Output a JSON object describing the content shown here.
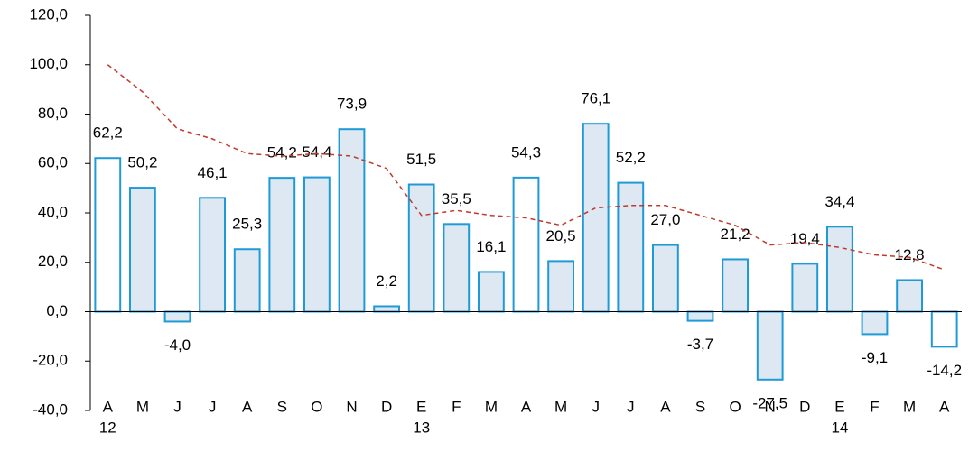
{
  "chart_data": {
    "type": "bar",
    "categories": [
      "A",
      "M",
      "J",
      "J",
      "A",
      "S",
      "O",
      "N",
      "D",
      "E",
      "F",
      "M",
      "A",
      "M",
      "J",
      "J",
      "A",
      "S",
      "O",
      "N",
      "D",
      "E",
      "F",
      "M",
      "A"
    ],
    "year_labels": [
      "12",
      null,
      null,
      null,
      null,
      null,
      null,
      null,
      null,
      "13",
      null,
      null,
      null,
      null,
      null,
      null,
      null,
      null,
      null,
      null,
      null,
      "14",
      null,
      null,
      null
    ],
    "series": [
      {
        "type": "bar",
        "color": "#1e9bd7",
        "fills": [
          "#ffffff",
          "#dde8f3",
          "#dde8f3",
          "#dde8f3",
          "#dde8f3",
          "#dde8f3",
          "#dde8f3",
          "#dde8f3",
          "#dde8f3",
          "#dde8f3",
          "#dde8f3",
          "#dde8f3",
          "#ffffff",
          "#dde8f3",
          "#dde8f3",
          "#dde8f3",
          "#dde8f3",
          "#dde8f3",
          "#dde8f3",
          "#dde8f3",
          "#dde8f3",
          "#dde8f3",
          "#dde8f3",
          "#dde8f3",
          "#ffffff"
        ],
        "values": [
          62.2,
          50.2,
          -4.0,
          46.1,
          25.3,
          54.2,
          54.4,
          73.9,
          2.2,
          51.5,
          35.5,
          16.1,
          54.3,
          20.5,
          76.1,
          52.2,
          27.0,
          -3.7,
          21.2,
          -27.5,
          19.4,
          34.4,
          -9.1,
          12.8,
          -14.2
        ],
        "value_labels": [
          "62,2",
          "50,2",
          "-4,0",
          "46,1",
          "25,3",
          "54,2",
          "54,4",
          "73,9",
          "2,2",
          "51,5",
          "35,5",
          "16,1",
          "54,3",
          "20,5",
          "76,1",
          "52,2",
          "27,0",
          "-3,7",
          "21,2",
          "-27,5",
          "19,4",
          "34,4",
          "-9,1",
          "12,8",
          "-14,2"
        ]
      },
      {
        "type": "line",
        "color": "#c0392b",
        "dashed": true,
        "values": [
          100,
          89,
          74,
          70,
          64,
          63,
          64,
          63,
          58,
          39,
          41,
          39,
          38,
          35,
          42,
          43,
          43,
          39,
          35,
          27,
          28,
          26,
          23,
          22,
          17
        ]
      }
    ],
    "ylim": [
      -40,
      120
    ],
    "yticks": [
      {
        "value": -40,
        "label": "-40,0"
      },
      {
        "value": -20,
        "label": "-20,0"
      },
      {
        "value": 0,
        "label": "0,0"
      },
      {
        "value": 20,
        "label": "20,0"
      },
      {
        "value": 40,
        "label": "40,0"
      },
      {
        "value": 60,
        "label": "60,0"
      },
      {
        "value": 80,
        "label": "80,0"
      },
      {
        "value": 100,
        "label": "100,0"
      },
      {
        "value": 120,
        "label": "120,0"
      }
    ]
  }
}
